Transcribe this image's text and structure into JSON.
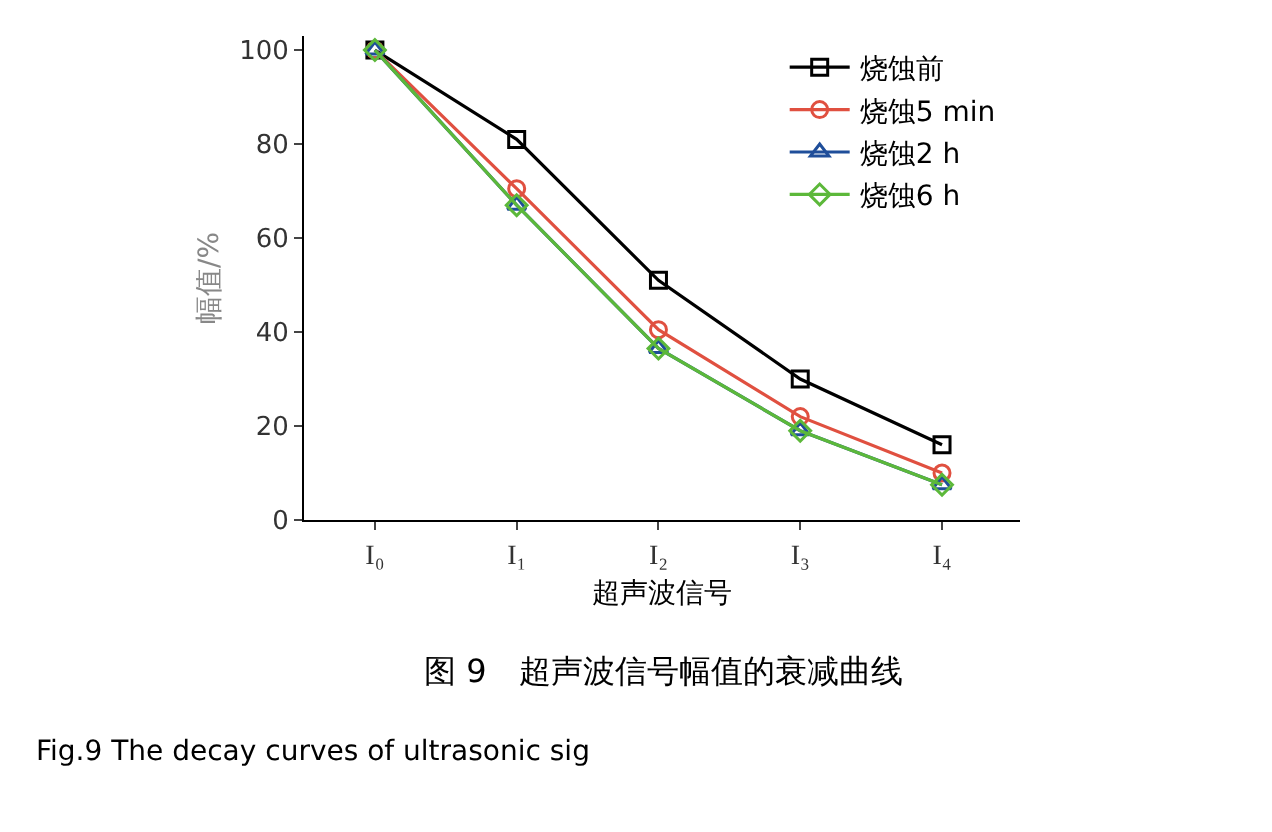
{
  "chart_data": {
    "type": "line",
    "xlabel": "超声波信号",
    "ylabel": "幅值/%",
    "categories": [
      "I₀",
      "I₁",
      "I₂",
      "I₃",
      "I₄"
    ],
    "series": [
      {
        "name": "烧蚀前",
        "color": "#000000",
        "marker": "square",
        "values": [
          100,
          81,
          51,
          30,
          16
        ]
      },
      {
        "name": "烧蚀5 min",
        "color": "#e05040",
        "marker": "circle",
        "values": [
          100,
          70.5,
          40.5,
          22,
          10
        ]
      },
      {
        "name": "烧蚀2 h",
        "color": "#1f4e9a",
        "marker": "triangle",
        "values": [
          100,
          67,
          36.5,
          19,
          7.5
        ]
      },
      {
        "name": "烧蚀6 h",
        "color": "#5cb83a",
        "marker": "diamond",
        "values": [
          100,
          67,
          36.5,
          19,
          7.5
        ]
      }
    ],
    "ylim": [
      0,
      103
    ],
    "yticks": [
      0,
      20,
      40,
      60,
      80,
      100
    ],
    "legend": "top right",
    "line_style": "solid",
    "annotations": [
      "图 9　超声波信号幅值的衰减曲线",
      "Fig.9 The decay curves of ultrasonic sig"
    ]
  }
}
